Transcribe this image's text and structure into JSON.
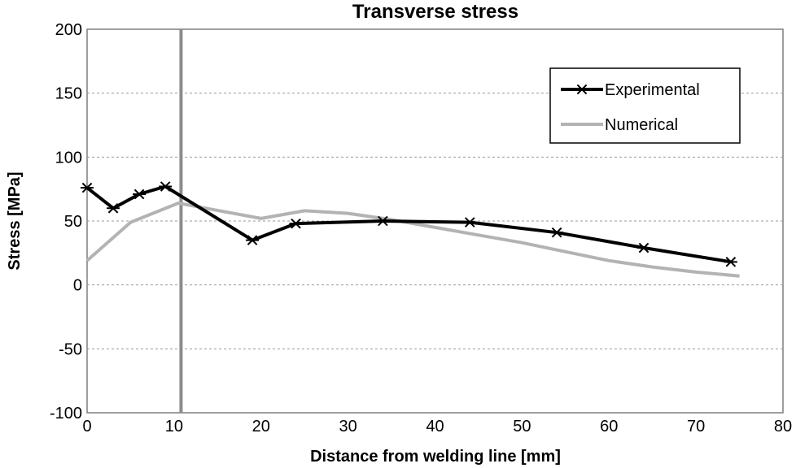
{
  "chart_data": {
    "type": "line",
    "title": "Transverse stress",
    "xlabel": "Distance from welding line [mm]",
    "ylabel": "Stress [MPa]",
    "xlim": [
      0,
      80
    ],
    "ylim": [
      -100,
      200
    ],
    "x_ticks": [
      "0",
      "10",
      "20",
      "30",
      "40",
      "50",
      "60",
      "70",
      "80"
    ],
    "y_ticks": [
      "200",
      "150",
      "100",
      "50",
      "0",
      "-50",
      "-100"
    ],
    "grid": "horizontal dashed",
    "legend_position": "top-right",
    "reference_line_x": 10.8,
    "series": [
      {
        "name": "Experimental",
        "color": "#000000",
        "marker": "asterisk",
        "x": [
          0,
          3,
          6,
          9,
          19,
          24,
          34,
          44,
          54,
          64,
          74
        ],
        "y": [
          76,
          60,
          71,
          77,
          35,
          48,
          50,
          49,
          41,
          29,
          18
        ]
      },
      {
        "name": "Numerical",
        "color": "#b3b3b3",
        "marker": "none",
        "x": [
          0,
          5,
          10.5,
          20,
          25,
          30,
          35,
          40,
          45,
          50,
          55,
          60,
          65,
          70,
          75
        ],
        "y": [
          19,
          49,
          64,
          52,
          58,
          56,
          51,
          45,
          39,
          33,
          26,
          19,
          14,
          10,
          7
        ]
      }
    ]
  }
}
